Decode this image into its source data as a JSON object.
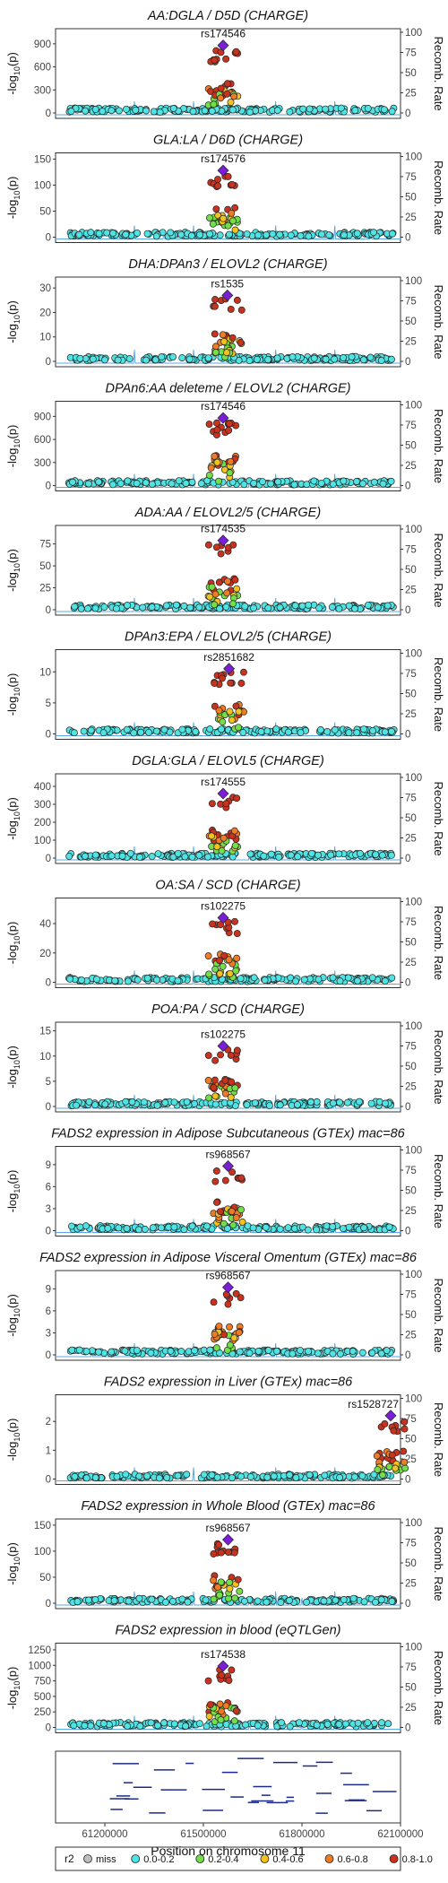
{
  "figure": {
    "y_label_main": "-log",
    "y_label_sub": "10",
    "y_label_end": "(p)",
    "y_label_right": "Recomb. Rate",
    "x_axis_title": "Position on chromosome 11",
    "x_ticks": [
      "61200000",
      "61500000",
      "61800000",
      "62100000"
    ],
    "legend": {
      "title": "r2",
      "items": [
        {
          "label": "miss",
          "color": "#bdbdbd"
        },
        {
          "label": "0.0-0.2",
          "color": "#4fe3e3"
        },
        {
          "label": "0.2-0.4",
          "color": "#73de4a"
        },
        {
          "label": "0.4-0.6",
          "color": "#f2c21f"
        },
        {
          "label": "0.6-0.8",
          "color": "#ee7b26"
        },
        {
          "label": "0.8-1.0",
          "color": "#c8331f"
        }
      ]
    },
    "colors": {
      "lead": "#7a1fd6",
      "recomb": "#5aa9e6",
      "axis": "#222222"
    }
  },
  "chart_data": [
    {
      "type": "scatter",
      "title": "AA:DGLA / D5D (CHARGE)",
      "lead_snp": "rs174546",
      "y_ticks": [
        "0",
        "300",
        "600",
        "900"
      ],
      "ylim": [
        0,
        1050
      ],
      "y_right_ticks": [
        "0",
        "25",
        "50",
        "75",
        "100"
      ],
      "y2lim": [
        0,
        100
      ],
      "lead_value": 880
    },
    {
      "type": "scatter",
      "title": "GLA:LA / D6D (CHARGE)",
      "lead_snp": "rs174576",
      "y_ticks": [
        "0",
        "50",
        "100",
        "150"
      ],
      "ylim": [
        0,
        155
      ],
      "y_right_ticks": [
        "0",
        "25",
        "50",
        "75",
        "100"
      ],
      "y2lim": [
        0,
        100
      ],
      "lead_value": 128
    },
    {
      "type": "scatter",
      "title": "DHA:DPAn3 / ELOVL2 (CHARGE)",
      "lead_snp": "rs1535",
      "y_ticks": [
        "0",
        "10",
        "20",
        "30"
      ],
      "ylim": [
        0,
        33
      ],
      "y_right_ticks": [
        "0",
        "25",
        "50",
        "75",
        "100"
      ],
      "y2lim": [
        0,
        100
      ],
      "lead_value": 27
    },
    {
      "type": "scatter",
      "title": "DPAn6:AA deleteme / ELOVL2 (CHARGE)",
      "lead_snp": "rs174546",
      "y_ticks": [
        "0",
        "300",
        "600",
        "900"
      ],
      "ylim": [
        0,
        1050
      ],
      "y_right_ticks": [
        "0",
        "25",
        "50",
        "75",
        "100"
      ],
      "y2lim": [
        0,
        100
      ],
      "lead_value": 880
    },
    {
      "type": "scatter",
      "title": "ADA:AA / ELOVL2/5 (CHARGE)",
      "lead_snp": "rs174535",
      "y_ticks": [
        "0",
        "25",
        "50",
        "75"
      ],
      "ylim": [
        0,
        92
      ],
      "y_right_ticks": [
        "0",
        "25",
        "50",
        "75",
        "100"
      ],
      "y2lim": [
        0,
        100
      ],
      "lead_value": 79
    },
    {
      "type": "scatter",
      "title": "DPAn3:EPA / ELOVL2/5 (CHARGE)",
      "lead_snp": "rs2851682",
      "y_ticks": [
        "0",
        "5",
        "10"
      ],
      "ylim": [
        0,
        13
      ],
      "y_right_ticks": [
        "0",
        "25",
        "50",
        "75",
        "100"
      ],
      "y2lim": [
        0,
        100
      ],
      "lead_value": 10.5
    },
    {
      "type": "scatter",
      "title": "DGLA:GLA / ELOVL5 (CHARGE)",
      "lead_snp": "rs174555",
      "y_ticks": [
        "0",
        "100",
        "200",
        "300",
        "400"
      ],
      "ylim": [
        0,
        450
      ],
      "y_right_ticks": [
        "0",
        "25",
        "50",
        "75",
        "100"
      ],
      "y2lim": [
        0,
        100
      ],
      "lead_value": 360
    },
    {
      "type": "scatter",
      "title": "OA:SA / SCD (CHARGE)",
      "lead_snp": "rs102275",
      "y_ticks": [
        "0",
        "20",
        "40"
      ],
      "ylim": [
        0,
        55
      ],
      "y_right_ticks": [
        "0",
        "25",
        "50",
        "75",
        "100"
      ],
      "y2lim": [
        0,
        100
      ],
      "lead_value": 44
    },
    {
      "type": "scatter",
      "title": "POA:PA / SCD (CHARGE)",
      "lead_snp": "rs102275",
      "y_ticks": [
        "0",
        "5",
        "10",
        "15"
      ],
      "ylim": [
        0,
        16
      ],
      "y_right_ticks": [
        "0",
        "25",
        "50",
        "75",
        "100"
      ],
      "y2lim": [
        0,
        100
      ],
      "lead_value": 12
    },
    {
      "type": "scatter",
      "title": "FADS2 expression in Adipose Subcutaneous (GTEx) mac=86",
      "lead_snp": "rs968567",
      "y_ticks": [
        "0",
        "3",
        "6",
        "9"
      ],
      "ylim": [
        0,
        11
      ],
      "y_right_ticks": [
        "0",
        "25",
        "50",
        "75",
        "100"
      ],
      "y2lim": [
        0,
        100
      ],
      "lead_value": 8.8
    },
    {
      "type": "scatter",
      "title": "FADS2 expression in Adipose Visceral Omentum (GTEx) mac=86",
      "lead_snp": "rs968567",
      "y_ticks": [
        "0",
        "3",
        "6",
        "9"
      ],
      "ylim": [
        0,
        11
      ],
      "y_right_ticks": [
        "0",
        "25",
        "50",
        "75",
        "100"
      ],
      "y2lim": [
        0,
        100
      ],
      "lead_value": 9.2
    },
    {
      "type": "scatter",
      "title": "FADS2 expression in Liver (GTEx) mac=86",
      "lead_snp": "rs1528727",
      "y_ticks": [
        "0",
        "1",
        "2"
      ],
      "ylim": [
        0,
        2.8
      ],
      "y_right_ticks": [
        "0",
        "25",
        "50",
        "75",
        "100"
      ],
      "y2lim": [
        0,
        100
      ],
      "lead_value": 2.2
    },
    {
      "type": "scatter",
      "title": "FADS2 expression in Whole Blood (GTEx) mac=86",
      "lead_snp": "rs968567",
      "y_ticks": [
        "0",
        "50",
        "100",
        "150"
      ],
      "ylim": [
        0,
        155
      ],
      "y_right_ticks": [
        "0",
        "25",
        "50",
        "75",
        "100"
      ],
      "y2lim": [
        0,
        100
      ],
      "lead_value": 122
    },
    {
      "type": "scatter",
      "title": "FADS2 expression in blood (eQTLGen)",
      "lead_snp": "rs174538",
      "y_ticks": [
        "0",
        "250",
        "500",
        "750",
        "1000",
        "1250"
      ],
      "ylim": [
        0,
        1300
      ],
      "y_right_ticks": [
        "0",
        "25",
        "50",
        "75",
        "100"
      ],
      "y2lim": [
        0,
        100
      ],
      "lead_value": 990
    }
  ]
}
